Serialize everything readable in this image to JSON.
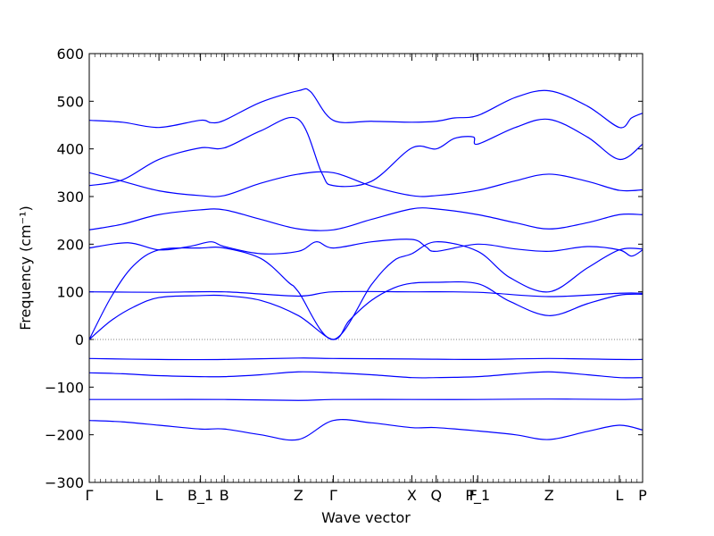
{
  "chart_data": {
    "type": "line",
    "xlabel": "Wave vector",
    "ylabel": "Frequency (cm⁻¹)",
    "ylim": [
      -300,
      600
    ],
    "xlim": [
      0,
      100
    ],
    "grid": false,
    "line_color": "#0000ff",
    "zero_line": true,
    "x_ticks": [
      {
        "label": "Γ",
        "x": 0
      },
      {
        "label": "L",
        "x": 12.6
      },
      {
        "label": "B_1",
        "x": 20.1
      },
      {
        "label": "B",
        "x": 24.4
      },
      {
        "label": "Z",
        "x": 37.8
      },
      {
        "label": "Γ",
        "x": 44.1
      },
      {
        "label": "X",
        "x": 58.3
      },
      {
        "label": "Q",
        "x": 62.7
      },
      {
        "label": "F",
        "x": 69.4
      },
      {
        "label": "P_1",
        "x": 70.2
      },
      {
        "label": "Z",
        "x": 83.1
      },
      {
        "label": "L",
        "x": 95.8
      },
      {
        "label": "P",
        "x": 100
      }
    ],
    "y_ticks": [
      600,
      500,
      400,
      300,
      200,
      100,
      0,
      -100,
      -200,
      -300
    ],
    "series": [
      {
        "x": [
          0,
          6,
          12.6,
          20,
          24.4,
          31,
          37.8,
          44.1,
          51,
          58.3,
          62.7,
          70.2,
          77,
          83.1,
          90,
          95.8,
          100
        ],
        "values": [
          -170,
          -173,
          -180,
          -188,
          -188,
          -200,
          -210,
          -170,
          -175,
          -185,
          -185,
          -192,
          -200,
          -210,
          -193,
          -180,
          -190
        ]
      },
      {
        "x": [
          0,
          12.6,
          24.4,
          37.8,
          44.1,
          58.3,
          70.2,
          83.1,
          95.8,
          100
        ],
        "values": [
          -126,
          -126,
          -126,
          -128,
          -126,
          -126,
          -126,
          -125,
          -126,
          -125
        ]
      },
      {
        "x": [
          0,
          6,
          12.6,
          20,
          24.4,
          31,
          37.8,
          44.1,
          51,
          58.3,
          62.7,
          70.2,
          77,
          83.1,
          90,
          95.8,
          100
        ],
        "values": [
          -70,
          -72,
          -76,
          -78,
          -78,
          -74,
          -68,
          -70,
          -74,
          -80,
          -80,
          -78,
          -72,
          -68,
          -74,
          -80,
          -80
        ]
      },
      {
        "x": [
          0,
          12.6,
          24.4,
          37.8,
          44.1,
          58.3,
          70.2,
          83.1,
          95.8,
          100
        ],
        "values": [
          -40,
          -42,
          -42,
          -39,
          -40,
          -41,
          -42,
          -40,
          -42,
          -42
        ]
      },
      {
        "x": [
          0,
          4,
          8,
          12.6,
          20,
          24.4,
          31,
          37.8,
          44.1,
          47,
          51,
          55,
          58.3,
          62.7,
          70.2,
          76,
          83.1,
          90,
          95.8,
          100
        ],
        "values": [
          0,
          40,
          68,
          88,
          92,
          92,
          82,
          50,
          0,
          40,
          82,
          108,
          118,
          120,
          117,
          80,
          50,
          75,
          93,
          95
        ]
      },
      {
        "x": [
          0,
          12.6,
          24.4,
          37.8,
          44.1,
          58.3,
          70.2,
          83.1,
          95.8,
          100
        ],
        "values": [
          100,
          99,
          100,
          91,
          100,
          100,
          99,
          90,
          97,
          97
        ]
      },
      {
        "x": [
          0,
          4,
          8,
          12.6,
          20,
          24.4,
          31,
          36,
          37.8,
          44.1,
          51,
          55,
          58.3,
          62.7,
          70.2,
          76,
          83.1,
          90,
          95.8,
          100
        ],
        "values": [
          0,
          90,
          155,
          188,
          192,
          192,
          170,
          120,
          100,
          0,
          115,
          165,
          180,
          205,
          185,
          130,
          100,
          150,
          188,
          190
        ]
      },
      {
        "x": [
          0,
          7,
          12.6,
          18,
          22,
          24.4,
          31,
          37.8,
          41,
          44.1,
          51,
          58.3,
          60.8,
          62.7,
          70.2,
          77,
          83.1,
          90,
          95.8,
          98,
          100
        ],
        "values": [
          192,
          203,
          188,
          195,
          205,
          195,
          180,
          185,
          205,
          192,
          205,
          210,
          195,
          185,
          200,
          190,
          185,
          195,
          188,
          175,
          188
        ]
      },
      {
        "x": [
          0,
          6,
          12.6,
          20,
          24.4,
          31,
          37.8,
          44.1,
          51,
          58.3,
          62.7,
          70.2,
          77,
          83.1,
          90,
          95.8,
          100
        ],
        "values": [
          230,
          242,
          262,
          272,
          272,
          252,
          232,
          230,
          252,
          274,
          274,
          262,
          245,
          232,
          245,
          262,
          262
        ]
      },
      {
        "x": [
          0,
          6,
          12.6,
          20,
          24.4,
          31,
          37.8,
          44.1,
          51,
          58.3,
          62.7,
          70.2,
          77,
          83.1,
          90,
          95.8,
          100
        ],
        "values": [
          350,
          332,
          312,
          302,
          302,
          328,
          347,
          350,
          322,
          302,
          302,
          313,
          333,
          347,
          332,
          313,
          314
        ]
      },
      {
        "x": [
          0,
          6,
          12.6,
          20,
          24.4,
          31,
          37.8,
          42,
          44.1,
          51,
          58.3,
          62.7,
          66,
          69.4,
          70.2,
          77,
          83.1,
          90,
          95.8,
          100
        ],
        "values": [
          323,
          335,
          378,
          402,
          402,
          438,
          462,
          350,
          323,
          332,
          402,
          400,
          422,
          425,
          410,
          445,
          462,
          425,
          378,
          410
        ]
      },
      {
        "x": [
          0,
          6,
          12.6,
          20,
          22,
          24.4,
          31,
          37.8,
          40,
          44.1,
          51,
          58.3,
          62.7,
          66,
          70.2,
          77,
          83.1,
          90,
          95.8,
          98,
          100
        ],
        "values": [
          460,
          456,
          445,
          460,
          455,
          460,
          498,
          522,
          520,
          460,
          458,
          456,
          458,
          465,
          470,
          508,
          522,
          490,
          445,
          465,
          475
        ]
      }
    ]
  }
}
